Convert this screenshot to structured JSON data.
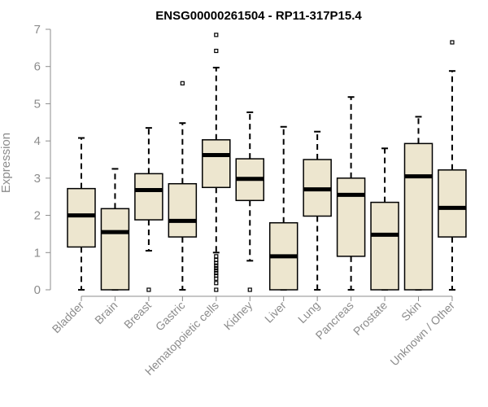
{
  "chart_data": {
    "type": "box",
    "title": "ENSG00000261504 - RP11-317P15.4",
    "xlabel": "",
    "ylabel": "Expression",
    "ylim": [
      0,
      7
    ],
    "yticks": [
      0,
      1,
      2,
      3,
      4,
      5,
      6,
      7
    ],
    "grid": false,
    "legend": "none",
    "colors": {
      "box_fill": "#ede6cf",
      "box_stroke": "#000000",
      "axis": "#8c8c8c",
      "label": "#8c8c8c"
    },
    "categories": [
      "Bladder",
      "Brain",
      "Breast",
      "Gastric",
      "Hematopoietic cells",
      "Kidney",
      "Liver",
      "Lung",
      "Pancreas",
      "Prostate",
      "Skin",
      "Unknown / Other"
    ],
    "boxes": [
      {
        "category": "Bladder",
        "whisker_low": 0,
        "q1": 1.15,
        "median": 2.0,
        "q3": 2.72,
        "whisker_high": 4.08,
        "outliers": []
      },
      {
        "category": "Brain",
        "whisker_low": 0,
        "q1": 0,
        "median": 1.55,
        "q3": 2.18,
        "whisker_high": 3.25,
        "outliers": []
      },
      {
        "category": "Breast",
        "whisker_low": 1.05,
        "q1": 1.88,
        "median": 2.68,
        "q3": 3.12,
        "whisker_high": 4.35,
        "outliers": [
          0
        ]
      },
      {
        "category": "Gastric",
        "whisker_low": 0,
        "q1": 1.42,
        "median": 1.85,
        "q3": 2.85,
        "whisker_high": 4.48,
        "outliers": [
          5.55
        ]
      },
      {
        "category": "Hematopoietic cells",
        "whisker_low": 1.0,
        "q1": 2.75,
        "median": 3.62,
        "q3": 4.03,
        "whisker_high": 5.97,
        "outliers": [
          0,
          0.18,
          0.3,
          0.38,
          0.45,
          0.52,
          0.58,
          0.65,
          0.72,
          0.8,
          0.9,
          6.42,
          6.85
        ]
      },
      {
        "category": "Kidney",
        "whisker_low": 0.78,
        "q1": 2.4,
        "median": 2.98,
        "q3": 3.52,
        "whisker_high": 4.77,
        "outliers": [
          0
        ]
      },
      {
        "category": "Liver",
        "whisker_low": 0,
        "q1": 0,
        "median": 0.9,
        "q3": 1.8,
        "whisker_high": 4.38,
        "outliers": []
      },
      {
        "category": "Lung",
        "whisker_low": 0,
        "q1": 1.98,
        "median": 2.7,
        "q3": 3.5,
        "whisker_high": 4.25,
        "outliers": []
      },
      {
        "category": "Pancreas",
        "whisker_low": 0,
        "q1": 0.9,
        "median": 2.55,
        "q3": 3.0,
        "whisker_high": 5.18,
        "outliers": []
      },
      {
        "category": "Prostate",
        "whisker_low": 0,
        "q1": 0,
        "median": 1.48,
        "q3": 2.35,
        "whisker_high": 3.8,
        "outliers": []
      },
      {
        "category": "Skin",
        "whisker_low": 0,
        "q1": 0,
        "median": 3.05,
        "q3": 3.93,
        "whisker_high": 4.65,
        "outliers": []
      },
      {
        "category": "Unknown / Other",
        "whisker_low": 0,
        "q1": 1.42,
        "median": 2.2,
        "q3": 3.22,
        "whisker_high": 5.88,
        "outliers": [
          6.65
        ]
      }
    ]
  }
}
